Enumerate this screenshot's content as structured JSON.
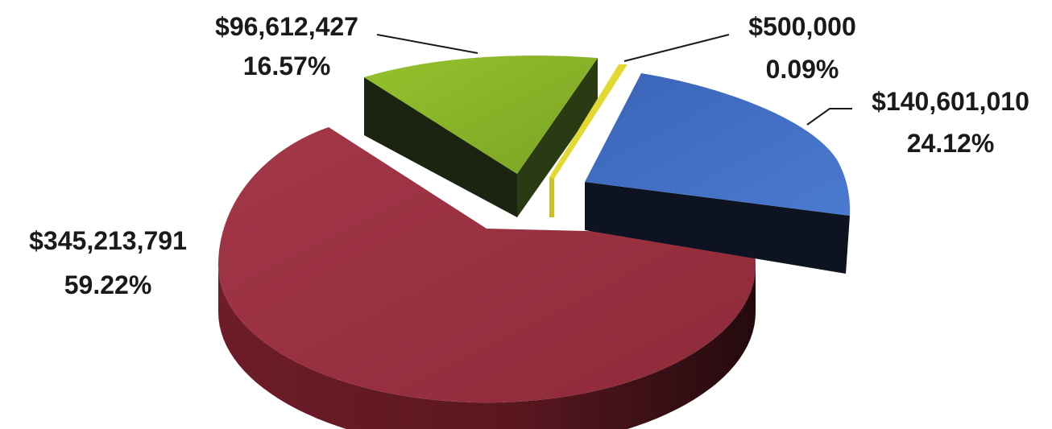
{
  "chart_data": {
    "type": "pie",
    "title": "",
    "slices": [
      {
        "value": 140601010,
        "value_label": "$140,601,010",
        "percent": 24.12,
        "percent_label": "24.12%",
        "color": "#4472c4",
        "exploded": true
      },
      {
        "value": 345213791,
        "value_label": "$345,213,791",
        "percent": 59.22,
        "percent_label": "59.22%",
        "color": "#9c2f3f",
        "exploded": false
      },
      {
        "value": 96612427,
        "value_label": "$96,612,427",
        "percent": 16.57,
        "percent_label": "16.57%",
        "color": "#8db82a",
        "exploded": true
      },
      {
        "value": 500000,
        "value_label": "$500,000",
        "percent": 0.09,
        "percent_label": "0.09%",
        "color": "#e2da33",
        "exploded": true
      }
    ]
  }
}
